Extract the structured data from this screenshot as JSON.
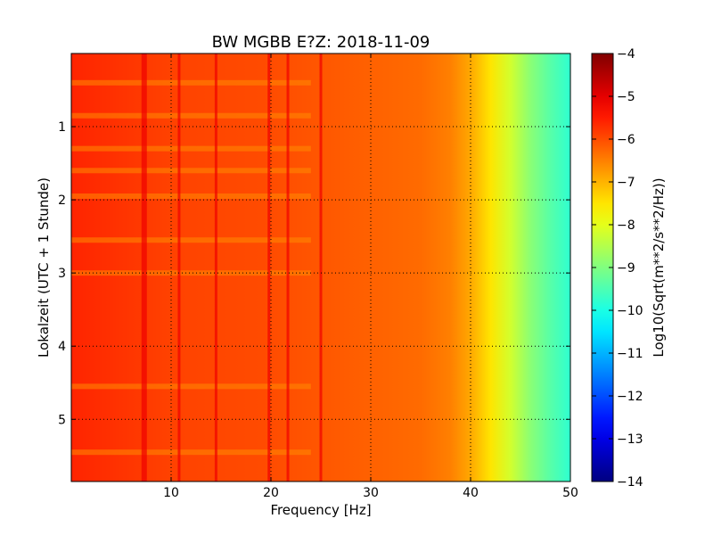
{
  "chart_data": {
    "type": "heatmap",
    "title": "BW MGBB E?Z: 2018-11-09",
    "xlabel": "Frequency [Hz]",
    "ylabel": "Lokalzeit (UTC + 1 Stunde)",
    "xlim": [
      0,
      50
    ],
    "ylim": [
      5.85,
      0
    ],
    "x_ticks": [
      10,
      20,
      30,
      40,
      50
    ],
    "x_tick_labels": [
      "10",
      "20",
      "30",
      "40",
      "50"
    ],
    "y_ticks": [
      1,
      2,
      3,
      4,
      5
    ],
    "y_tick_labels": [
      "1",
      "2",
      "3",
      "4",
      "5"
    ],
    "grid": true,
    "colorbar": {
      "label": "Log10(Sqrt(m**2/s**2/Hz))",
      "colormap": "jet",
      "range": [
        -14,
        -4
      ],
      "ticks": [
        -4,
        -5,
        -6,
        -7,
        -8,
        -9,
        -10,
        -11,
        -12,
        -13,
        -14
      ],
      "tick_labels": [
        "−4",
        "−5",
        "−6",
        "−7",
        "−8",
        "−9",
        "−10",
        "−11",
        "−12",
        "−13",
        "−14"
      ]
    },
    "spectrum_profile": {
      "frequency_hz": [
        0,
        10,
        20,
        30,
        35,
        38,
        40,
        42,
        44,
        46,
        48,
        50
      ],
      "level": [
        -5.6,
        -5.9,
        -6.0,
        -6.2,
        -6.3,
        -6.5,
        -6.9,
        -7.5,
        -8.2,
        -8.9,
        -9.4,
        -9.8
      ]
    },
    "vertical_lines_hz": [
      7.3,
      10.8,
      14.5,
      19.8,
      21.7,
      25.0
    ],
    "horizontal_bands_h": [
      0.4,
      0.85,
      1.3,
      1.6,
      1.95,
      2.55,
      3.0,
      4.55,
      5.45
    ]
  }
}
